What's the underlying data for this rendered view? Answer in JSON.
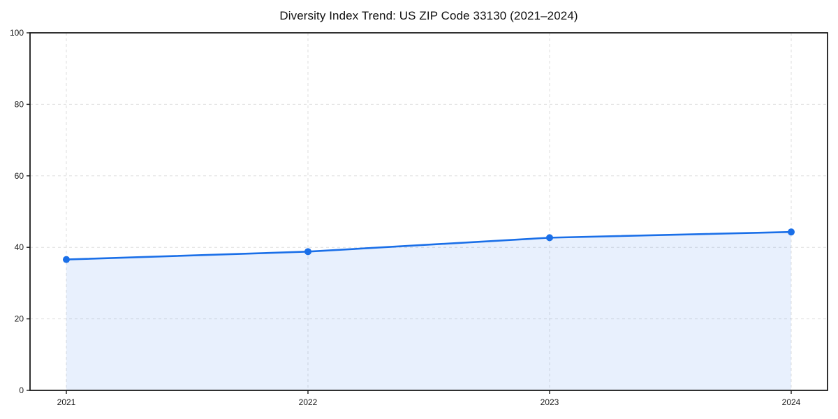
{
  "chart_data": {
    "type": "line",
    "title": "Diversity Index Trend: US ZIP Code 33130 (2021–2024)",
    "xlabel": "",
    "ylabel": "",
    "categories": [
      "2021",
      "2022",
      "2023",
      "2024"
    ],
    "series": [
      {
        "name": "Diversity Index",
        "values": [
          36.6,
          38.8,
          42.7,
          44.3
        ]
      }
    ],
    "ylim": [
      0,
      100
    ],
    "yticks": [
      0,
      20,
      40,
      60,
      80,
      100
    ],
    "grid": "dashed-both-axes",
    "legend": "none",
    "area_fill": true,
    "marker": "circle",
    "colors": {
      "line": "#1a6fe8",
      "marker": "#1a6fe8",
      "fill": "rgba(26, 111, 232, 0.10)",
      "grid": "#dedede",
      "axis": "#1a1a1a",
      "text": "#1a1a1a",
      "background": "#ffffff"
    }
  }
}
